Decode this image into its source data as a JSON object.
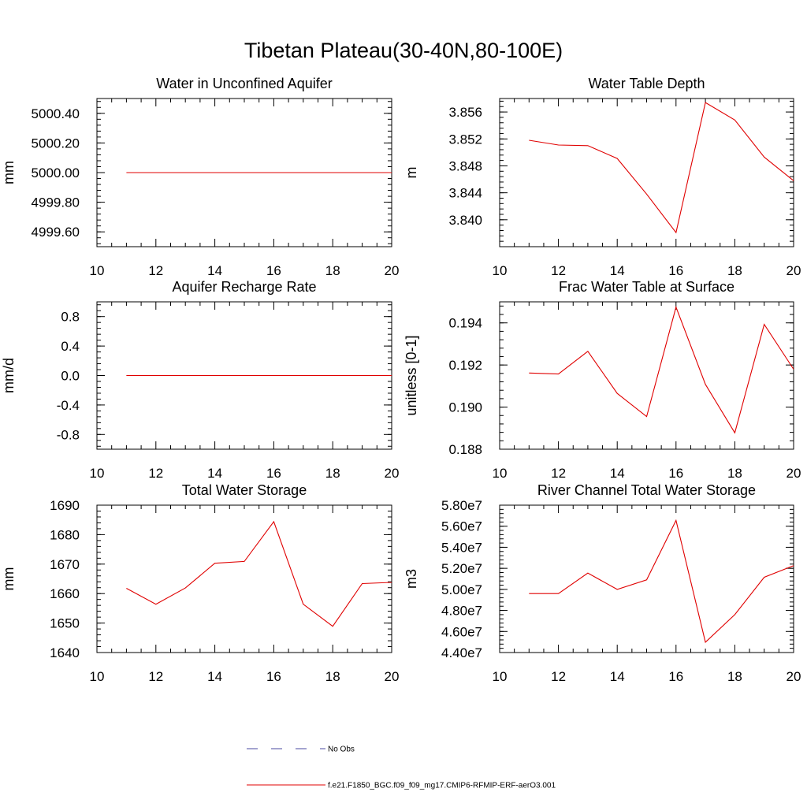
{
  "title": "Tibetan Plateau(30-40N,80-100E)",
  "chart_data": [
    {
      "type": "line",
      "title": "Water in Unconfined Aquifer",
      "ylabel": "mm",
      "xlim": [
        10,
        20
      ],
      "ylim": [
        4999.5,
        5000.5
      ],
      "xticks": [
        10,
        12,
        14,
        16,
        18,
        20
      ],
      "xtick_labels": [
        "10",
        "12",
        "14",
        "16",
        "18",
        "20"
      ],
      "yticks": [
        4999.6,
        4999.8,
        5000.0,
        5000.2,
        5000.4
      ],
      "ytick_labels": [
        "4999.60",
        "4999.80",
        "5000.00",
        "5000.20",
        "5000.40"
      ],
      "x": [
        11,
        12,
        13,
        14,
        15,
        16,
        17,
        18,
        19,
        20
      ],
      "series": [
        {
          "values": [
            5000,
            5000,
            5000,
            5000,
            5000,
            5000,
            5000,
            5000,
            5000,
            5000
          ]
        }
      ]
    },
    {
      "type": "line",
      "title": "Water Table Depth",
      "ylabel": "m",
      "xlim": [
        10,
        20
      ],
      "ylim": [
        3.836,
        3.858
      ],
      "xticks": [
        10,
        12,
        14,
        16,
        18,
        20
      ],
      "xtick_labels": [
        "10",
        "12",
        "14",
        "16",
        "18",
        "20"
      ],
      "yticks": [
        3.84,
        3.844,
        3.848,
        3.852,
        3.856
      ],
      "ytick_labels": [
        "3.840",
        "3.844",
        "3.848",
        "3.852",
        "3.856"
      ],
      "x": [
        11,
        12,
        13,
        14,
        15,
        16,
        17,
        18,
        19,
        20
      ],
      "series": [
        {
          "values": [
            3.8518,
            3.8511,
            3.851,
            3.8491,
            3.8438,
            3.8381,
            3.8574,
            3.8548,
            3.8493,
            3.8458
          ]
        }
      ]
    },
    {
      "type": "line",
      "title": "Aquifer Recharge Rate",
      "ylabel": "mm/d",
      "xlim": [
        10,
        20
      ],
      "ylim": [
        -1.0,
        1.0
      ],
      "xticks": [
        10,
        12,
        14,
        16,
        18,
        20
      ],
      "xtick_labels": [
        "10",
        "12",
        "14",
        "16",
        "18",
        "20"
      ],
      "yticks": [
        -0.8,
        -0.4,
        0.0,
        0.4,
        0.8
      ],
      "ytick_labels": [
        "-0.8",
        "-0.4",
        "0.0",
        "0.4",
        "0.8"
      ],
      "x": [
        11,
        12,
        13,
        14,
        15,
        16,
        17,
        18,
        19,
        20
      ],
      "series": [
        {
          "values": [
            0,
            0,
            0,
            0,
            0,
            0,
            0,
            0,
            0,
            0
          ]
        }
      ]
    },
    {
      "type": "line",
      "title": "Frac Water Table at Surface",
      "ylabel": "unitless [0-1]",
      "xlim": [
        10,
        20
      ],
      "ylim": [
        0.188,
        0.195
      ],
      "xticks": [
        10,
        12,
        14,
        16,
        18,
        20
      ],
      "xtick_labels": [
        "10",
        "12",
        "14",
        "16",
        "18",
        "20"
      ],
      "yticks": [
        0.188,
        0.19,
        0.192,
        0.194
      ],
      "ytick_labels": [
        "0.188",
        "0.190",
        "0.192",
        "0.194"
      ],
      "x": [
        11,
        12,
        13,
        14,
        15,
        16,
        17,
        18,
        19,
        20
      ],
      "series": [
        {
          "values": [
            0.19162,
            0.19157,
            0.19265,
            0.19065,
            0.18955,
            0.19475,
            0.19108,
            0.18878,
            0.19393,
            0.1918
          ]
        }
      ]
    },
    {
      "type": "line",
      "title": "Total Water Storage",
      "ylabel": "mm",
      "xlim": [
        10,
        20
      ],
      "ylim": [
        1640,
        1690
      ],
      "xticks": [
        10,
        12,
        14,
        16,
        18,
        20
      ],
      "xtick_labels": [
        "10",
        "12",
        "14",
        "16",
        "18",
        "20"
      ],
      "yticks": [
        1640,
        1650,
        1660,
        1670,
        1680,
        1690
      ],
      "ytick_labels": [
        "1640",
        "1650",
        "1660",
        "1670",
        "1680",
        "1690"
      ],
      "x": [
        11,
        12,
        13,
        14,
        15,
        16,
        17,
        18,
        19,
        20
      ],
      "series": [
        {
          "values": [
            1661.8,
            1656.4,
            1661.9,
            1670.3,
            1670.9,
            1684.4,
            1656.4,
            1648.9,
            1663.4,
            1663.8
          ]
        }
      ]
    },
    {
      "type": "line",
      "title": "River Channel Total Water Storage",
      "ylabel": "m3",
      "xlim": [
        10,
        20
      ],
      "ylim": [
        44000000,
        58000000
      ],
      "xticks": [
        10,
        12,
        14,
        16,
        18,
        20
      ],
      "xtick_labels": [
        "10",
        "12",
        "14",
        "16",
        "18",
        "20"
      ],
      "yticks": [
        44000000,
        46000000,
        48000000,
        50000000,
        52000000,
        54000000,
        56000000,
        58000000
      ],
      "ytick_labels": [
        "4.40e7",
        "4.60e7",
        "4.80e7",
        "5.00e7",
        "5.20e7",
        "5.40e7",
        "5.60e7",
        "5.80e7"
      ],
      "x": [
        11,
        12,
        13,
        14,
        15,
        16,
        17,
        18,
        19,
        20
      ],
      "series": [
        {
          "values": [
            49600000,
            49600000,
            51550000,
            50000000,
            50900000,
            56550000,
            44980000,
            47600000,
            51150000,
            52250000
          ]
        }
      ]
    }
  ],
  "legend": [
    {
      "label": "No Obs",
      "color": "#4a4aa0",
      "style": "dashed"
    },
    {
      "label": "f.e21.F1850_BGC.f09_f09_mg17.CMIP6-RFMIP-ERF-aerO3.001",
      "color": "#e00000",
      "style": "solid"
    }
  ],
  "colors": {
    "model_line": "#e00000",
    "obs_line": "#4a4aa0",
    "axis": "#000000"
  }
}
